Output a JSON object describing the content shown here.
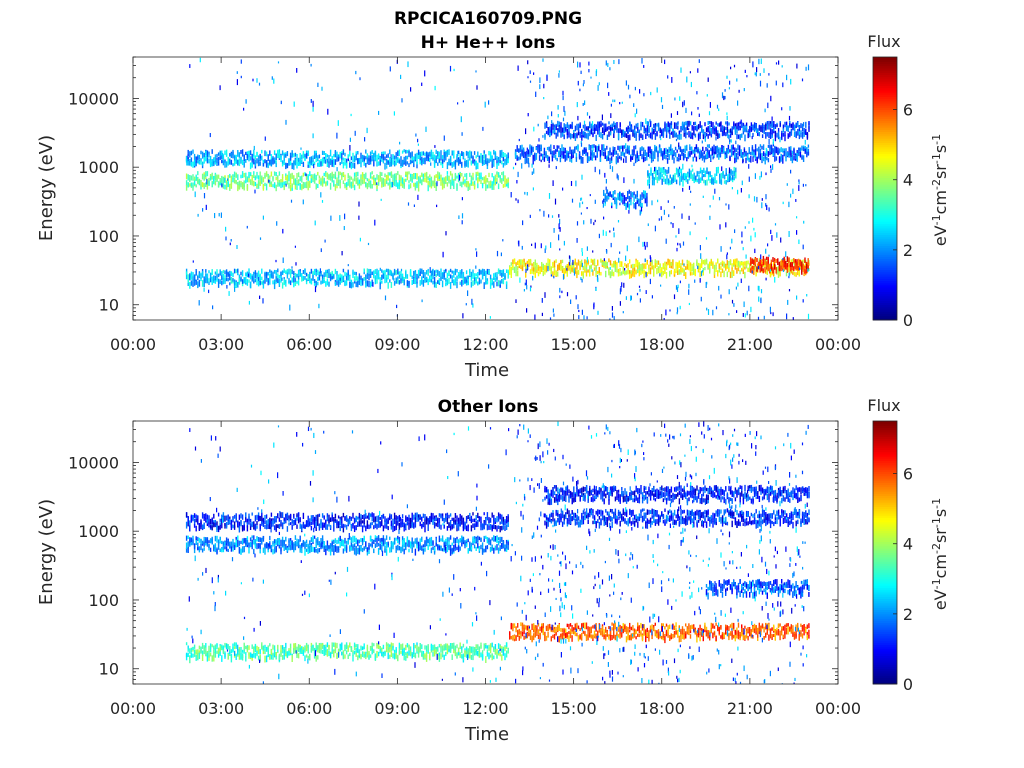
{
  "figure": {
    "title_line1": "RPCICA160709.PNG"
  },
  "chart_data": [
    {
      "type": "heatmap",
      "title": "H+ He++ Ions",
      "xlabel": "Time",
      "ylabel": "Energy (eV)",
      "x_ticks": [
        "00:00",
        "03:00",
        "06:00",
        "09:00",
        "12:00",
        "15:00",
        "18:00",
        "21:00",
        "00:00"
      ],
      "x_range_hours": [
        0,
        24
      ],
      "y_scale": "log",
      "y_ticks": [
        "10",
        "100",
        "1000",
        "10000"
      ],
      "y_range": [
        6,
        40000
      ],
      "colorbar": {
        "label": "Flux",
        "unit_text": "eV-1cm-2sr-1s-1",
        "ticks": [
          "0",
          "2",
          "4",
          "6"
        ],
        "range": [
          0,
          7.5
        ],
        "colormap": "jet"
      },
      "bands": [
        {
          "t_start": 1.8,
          "t_end": 12.8,
          "energy": 650,
          "flux": 3.6
        },
        {
          "t_start": 1.8,
          "t_end": 12.8,
          "energy": 1350,
          "flux": 2.2
        },
        {
          "t_start": 1.8,
          "t_end": 12.8,
          "energy": 25,
          "flux": 2.4
        },
        {
          "t_start": 12.8,
          "t_end": 23.0,
          "energy": 35,
          "flux": 4.6
        },
        {
          "t_start": 21.0,
          "t_end": 23.0,
          "energy": 38,
          "flux": 6.2
        },
        {
          "t_start": 14.0,
          "t_end": 23.0,
          "energy": 3500,
          "flux": 1.4
        },
        {
          "t_start": 13.0,
          "t_end": 23.0,
          "energy": 1600,
          "flux": 1.6
        },
        {
          "t_start": 16.0,
          "t_end": 17.5,
          "energy": 350,
          "flux": 1.8
        },
        {
          "t_start": 17.5,
          "t_end": 20.5,
          "energy": 750,
          "flux": 2.5
        }
      ]
    },
    {
      "type": "heatmap",
      "title": "Other Ions",
      "xlabel": "Time",
      "ylabel": "Energy (eV)",
      "x_ticks": [
        "00:00",
        "03:00",
        "06:00",
        "09:00",
        "12:00",
        "15:00",
        "18:00",
        "21:00",
        "00:00"
      ],
      "x_range_hours": [
        0,
        24
      ],
      "y_scale": "log",
      "y_ticks": [
        "10",
        "100",
        "1000",
        "10000"
      ],
      "y_range": [
        6,
        40000
      ],
      "colorbar": {
        "label": "Flux",
        "unit_text": "eV-1cm-2sr-1s-1",
        "ticks": [
          "0",
          "2",
          "4",
          "6"
        ],
        "range": [
          0,
          7.5
        ],
        "colormap": "jet"
      },
      "bands": [
        {
          "t_start": 1.8,
          "t_end": 12.8,
          "energy": 650,
          "flux": 2.0
        },
        {
          "t_start": 1.8,
          "t_end": 12.8,
          "energy": 1400,
          "flux": 1.2
        },
        {
          "t_start": 1.8,
          "t_end": 12.8,
          "energy": 18,
          "flux": 3.4
        },
        {
          "t_start": 12.8,
          "t_end": 23.0,
          "energy": 35,
          "flux": 5.8
        },
        {
          "t_start": 14.0,
          "t_end": 23.0,
          "energy": 3500,
          "flux": 1.2
        },
        {
          "t_start": 14.0,
          "t_end": 23.0,
          "energy": 1600,
          "flux": 1.3
        },
        {
          "t_start": 19.5,
          "t_end": 23.0,
          "energy": 150,
          "flux": 1.6
        }
      ]
    }
  ]
}
